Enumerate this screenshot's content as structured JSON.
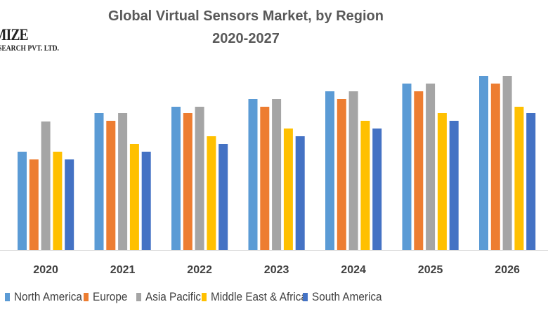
{
  "logo": {
    "line1": "MIZE",
    "line2": "SEARCH PVT. LTD."
  },
  "chart_data": {
    "type": "bar",
    "title": "Global Virtual Sensors Market, by Region",
    "subtitle": "2020-2027",
    "categories": [
      "2020",
      "2021",
      "2022",
      "2023",
      "2024",
      "2025",
      "2026"
    ],
    "series": [
      {
        "name": "North America",
        "color": "#5B9BD5",
        "values": [
          14.0,
          19.5,
          20.4,
          21.5,
          22.6,
          23.7,
          24.8
        ]
      },
      {
        "name": "Europe",
        "color": "#ED7D31",
        "values": [
          12.9,
          18.4,
          19.5,
          20.4,
          21.5,
          22.6,
          23.7
        ]
      },
      {
        "name": "Asia Pacific",
        "color": "#A5A5A5",
        "values": [
          18.3,
          19.5,
          20.4,
          21.5,
          22.6,
          23.7,
          24.8
        ]
      },
      {
        "name": "Middle East & Africa",
        "color": "#FFC000",
        "values": [
          14.0,
          15.1,
          16.2,
          17.3,
          18.4,
          19.5,
          20.4
        ]
      },
      {
        "name": "South America",
        "color": "#4472C4",
        "values": [
          12.9,
          14.0,
          15.1,
          16.2,
          17.3,
          18.4,
          19.5
        ]
      }
    ],
    "xlabel": "",
    "ylabel": "",
    "ylim": [
      0,
      26
    ],
    "grid": false,
    "legend": "bottom"
  }
}
